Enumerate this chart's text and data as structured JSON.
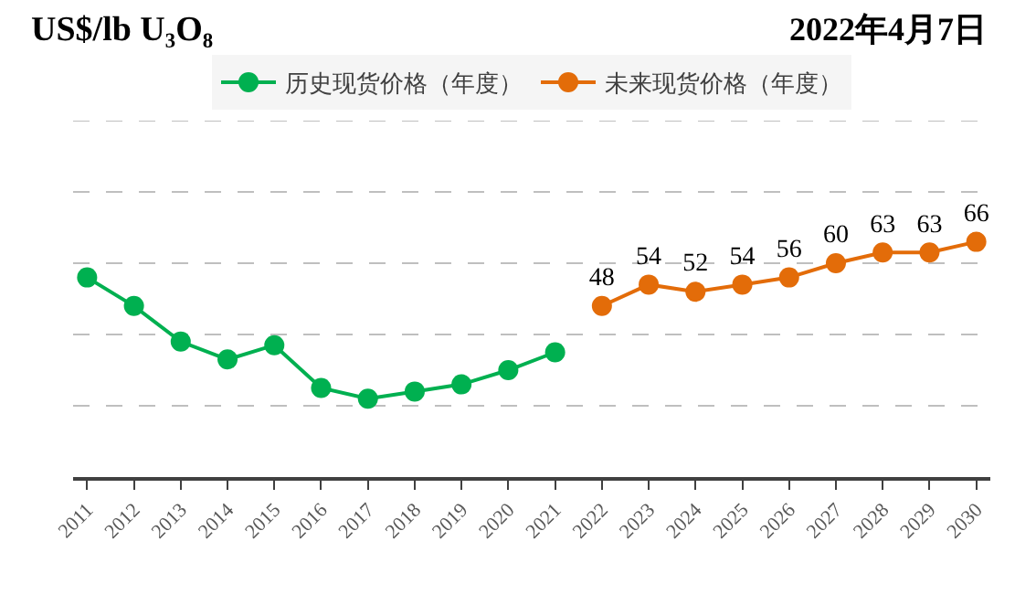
{
  "chart_data": {
    "type": "line",
    "title": "US$/lb U₃O₈",
    "subtitle": "2022年4月7日",
    "categories": [
      "2011",
      "2012",
      "2013",
      "2014",
      "2015",
      "2016",
      "2017",
      "2018",
      "2019",
      "2020",
      "2021",
      "2022",
      "2023",
      "2024",
      "2025",
      "2026",
      "2027",
      "2028",
      "2029",
      "2030"
    ],
    "series": [
      {
        "name": "历史现货价格（年度）",
        "color": "#00b050",
        "values": [
          56,
          48,
          38,
          33,
          37,
          25,
          22,
          24,
          26,
          30,
          35,
          null,
          null,
          null,
          null,
          null,
          null,
          null,
          null,
          null
        ]
      },
      {
        "name": "未来现货价格（年度）",
        "color": "#e36c09",
        "values": [
          null,
          null,
          null,
          null,
          null,
          null,
          null,
          null,
          null,
          null,
          null,
          48,
          54,
          52,
          54,
          56,
          60,
          63,
          63,
          66
        ],
        "value_labels": [
          null,
          null,
          null,
          null,
          null,
          null,
          null,
          null,
          null,
          null,
          null,
          "48",
          "54",
          "52",
          "54",
          "56",
          "60",
          "63",
          "63",
          "66"
        ]
      }
    ],
    "ylim": [
      0,
      100
    ],
    "yticks": [
      {
        "value": 20,
        "label": null
      },
      {
        "value": 40,
        "label": null
      },
      {
        "value": 60,
        "label": null
      },
      {
        "value": 80,
        "label": null
      },
      {
        "value": 100,
        "label": null
      }
    ],
    "tick_labels": "x",
    "grid": "y",
    "legend": "top",
    "marker": "circle",
    "line_style": "solid"
  }
}
